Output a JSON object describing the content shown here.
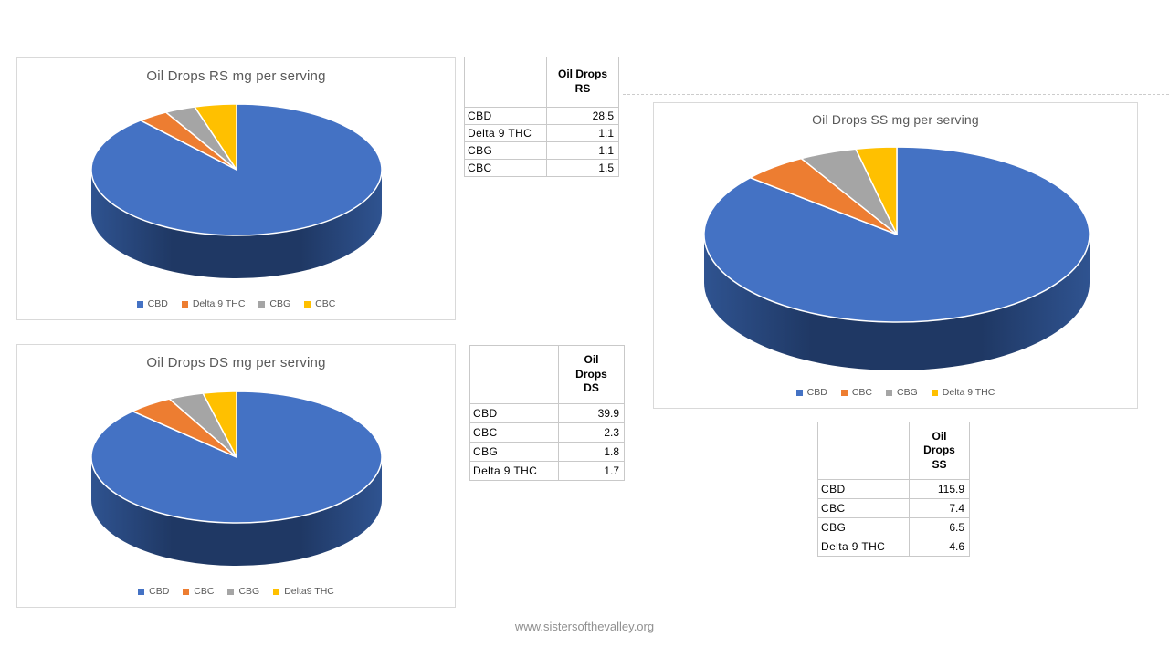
{
  "page": {
    "footer_url": "www.sistersofthevalley.org"
  },
  "colors": {
    "series_blue": "#4472C4",
    "series_orange": "#ED7D31",
    "series_gray": "#A5A5A5",
    "series_yellow": "#FFC000",
    "pie_side_dark": "#1F3864",
    "pie_side_light": "#2F5390",
    "chart_title_gray": "#595959",
    "panel_border": "#D9D9D9",
    "table_border": "#C9C9C9",
    "footer_gray": "#909090"
  },
  "chart_data": [
    {
      "type": "pie",
      "style": "3d",
      "title": "Oil Drops RS mg per serving",
      "unit": "mg",
      "direction": "clockwise",
      "start_angle_deg": 0,
      "legend_position": "bottom",
      "labels": [
        "CBD",
        "Delta 9 THC",
        "CBG",
        "CBC"
      ],
      "values": [
        28.5,
        1.1,
        1.1,
        1.5
      ],
      "colors": [
        "#4472C4",
        "#ED7D31",
        "#A5A5A5",
        "#FFC000"
      ]
    },
    {
      "type": "pie",
      "style": "3d",
      "title": "Oil Drops DS mg per serving",
      "unit": "mg",
      "direction": "clockwise",
      "start_angle_deg": 0,
      "legend_position": "bottom",
      "labels": [
        "CBD",
        "CBC",
        "CBG",
        "Delta9 THC"
      ],
      "values": [
        39.9,
        2.3,
        1.8,
        1.7
      ],
      "colors": [
        "#4472C4",
        "#ED7D31",
        "#A5A5A5",
        "#FFC000"
      ]
    },
    {
      "type": "pie",
      "style": "3d",
      "title": "Oil Drops SS mg per serving",
      "unit": "mg",
      "direction": "clockwise",
      "start_angle_deg": 0,
      "legend_position": "bottom",
      "labels": [
        "CBD",
        "CBC",
        "CBG",
        "Delta 9 THC"
      ],
      "values": [
        115.9,
        7.4,
        6.5,
        4.6
      ],
      "colors": [
        "#4472C4",
        "#ED7D31",
        "#A5A5A5",
        "#FFC000"
      ]
    }
  ],
  "tables": [
    {
      "header": "Oil Drops\nRS",
      "rows": [
        [
          "CBD",
          "28.5"
        ],
        [
          "Delta 9 THC",
          "1.1"
        ],
        [
          "CBG",
          "1.1"
        ],
        [
          "CBC",
          "1.5"
        ]
      ]
    },
    {
      "header": "Oil\nDrops\nDS",
      "rows": [
        [
          "CBD",
          "39.9"
        ],
        [
          "CBC",
          "2.3"
        ],
        [
          "CBG",
          "1.8"
        ],
        [
          "Delta 9 THC",
          "1.7"
        ]
      ]
    },
    {
      "header": "Oil\nDrops\nSS",
      "rows": [
        [
          "CBD",
          "115.9"
        ],
        [
          "CBC",
          "7.4"
        ],
        [
          "CBG",
          "6.5"
        ],
        [
          "Delta 9 THC",
          "4.6"
        ]
      ]
    }
  ]
}
